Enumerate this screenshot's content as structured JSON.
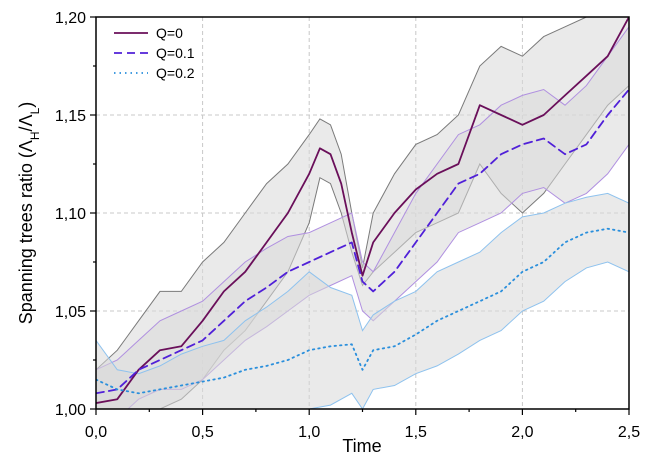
{
  "chart_data": {
    "type": "line",
    "xlabel": "Time",
    "ylabel_text": "Spanning trees ratio (",
    "ylabel_lambda": "Λ",
    "ylabel_sub_h": "H",
    "ylabel_slash": "/",
    "ylabel_sub_l": "L",
    "ylabel_close": ")",
    "xlim": [
      0,
      2.5
    ],
    "ylim": [
      1.0,
      1.2
    ],
    "xticks": [
      0,
      0.5,
      1.0,
      1.5,
      2.0,
      2.5
    ],
    "xtick_labels": [
      "0,0",
      "0,5",
      "1,0",
      "1,5",
      "2,0",
      "2,5"
    ],
    "yticks": [
      1.0,
      1.05,
      1.1,
      1.15,
      1.2
    ],
    "ytick_labels": [
      "1,00",
      "1,05",
      "1,10",
      "1,15",
      "1,20"
    ],
    "grid": true,
    "legend_position": "top-left",
    "band_fill_color": "#d9d9d9",
    "series": [
      {
        "name": "Q=0",
        "color": "#6a0f5a",
        "dash": "solid",
        "band_edge_color": "#7a7a7a",
        "x": [
          0.0,
          0.1,
          0.2,
          0.3,
          0.4,
          0.5,
          0.6,
          0.7,
          0.8,
          0.9,
          1.0,
          1.05,
          1.1,
          1.15,
          1.2,
          1.25,
          1.3,
          1.4,
          1.5,
          1.6,
          1.7,
          1.8,
          1.9,
          2.0,
          2.1,
          2.2,
          2.3,
          2.4,
          2.5
        ],
        "values": [
          1.003,
          1.005,
          1.02,
          1.03,
          1.032,
          1.045,
          1.06,
          1.07,
          1.085,
          1.1,
          1.12,
          1.133,
          1.13,
          1.115,
          1.09,
          1.068,
          1.085,
          1.1,
          1.112,
          1.12,
          1.125,
          1.155,
          1.15,
          1.145,
          1.15,
          1.16,
          1.17,
          1.18,
          1.2
        ],
        "upper": [
          1.02,
          1.03,
          1.045,
          1.06,
          1.06,
          1.075,
          1.085,
          1.1,
          1.115,
          1.125,
          1.14,
          1.148,
          1.145,
          1.13,
          1.1,
          1.072,
          1.1,
          1.12,
          1.135,
          1.14,
          1.15,
          1.175,
          1.185,
          1.18,
          1.19,
          1.195,
          1.2,
          1.2,
          1.2
        ],
        "lower": [
          0.99,
          0.99,
          0.995,
          1.0,
          1.005,
          1.015,
          1.03,
          1.04,
          1.055,
          1.07,
          1.095,
          1.118,
          1.115,
          1.1,
          1.08,
          1.063,
          1.07,
          1.08,
          1.09,
          1.095,
          1.1,
          1.125,
          1.11,
          1.1,
          1.11,
          1.125,
          1.14,
          1.155,
          1.165
        ]
      },
      {
        "name": "Q=0.1",
        "color": "#5020d8",
        "dash": "dashed",
        "band_edge_color": "#b090e0",
        "x": [
          0.0,
          0.1,
          0.2,
          0.3,
          0.4,
          0.5,
          0.6,
          0.7,
          0.8,
          0.9,
          1.0,
          1.1,
          1.2,
          1.25,
          1.3,
          1.4,
          1.5,
          1.6,
          1.7,
          1.8,
          1.9,
          2.0,
          2.1,
          2.2,
          2.3,
          2.4,
          2.5
        ],
        "values": [
          1.008,
          1.01,
          1.02,
          1.025,
          1.03,
          1.035,
          1.045,
          1.055,
          1.062,
          1.07,
          1.075,
          1.08,
          1.085,
          1.065,
          1.06,
          1.07,
          1.085,
          1.1,
          1.115,
          1.12,
          1.13,
          1.135,
          1.138,
          1.13,
          1.135,
          1.15,
          1.163
        ],
        "upper": [
          1.02,
          1.025,
          1.035,
          1.045,
          1.05,
          1.055,
          1.065,
          1.075,
          1.082,
          1.088,
          1.09,
          1.095,
          1.1,
          1.075,
          1.07,
          1.09,
          1.11,
          1.125,
          1.14,
          1.145,
          1.155,
          1.16,
          1.163,
          1.155,
          1.165,
          1.18,
          1.195
        ],
        "lower": [
          0.995,
          0.995,
          1.005,
          1.01,
          1.01,
          1.015,
          1.025,
          1.035,
          1.042,
          1.05,
          1.058,
          1.063,
          1.068,
          1.05,
          1.045,
          1.055,
          1.065,
          1.075,
          1.09,
          1.095,
          1.1,
          1.11,
          1.113,
          1.105,
          1.11,
          1.12,
          1.135
        ]
      },
      {
        "name": "Q=0.2",
        "color": "#2a8fdc",
        "dash": "dotted",
        "band_edge_color": "#8ec2ee",
        "x": [
          0.0,
          0.1,
          0.2,
          0.3,
          0.4,
          0.5,
          0.6,
          0.7,
          0.8,
          0.9,
          1.0,
          1.1,
          1.2,
          1.25,
          1.3,
          1.4,
          1.5,
          1.6,
          1.7,
          1.8,
          1.9,
          2.0,
          2.1,
          2.2,
          2.3,
          2.4,
          2.5
        ],
        "values": [
          1.015,
          1.01,
          1.008,
          1.01,
          1.012,
          1.014,
          1.016,
          1.02,
          1.022,
          1.025,
          1.03,
          1.032,
          1.033,
          1.02,
          1.03,
          1.032,
          1.038,
          1.045,
          1.05,
          1.055,
          1.06,
          1.07,
          1.075,
          1.085,
          1.09,
          1.092,
          1.09
        ],
        "upper": [
          1.035,
          1.02,
          1.018,
          1.022,
          1.028,
          1.032,
          1.035,
          1.045,
          1.052,
          1.06,
          1.07,
          1.062,
          1.058,
          1.04,
          1.048,
          1.055,
          1.06,
          1.07,
          1.075,
          1.08,
          1.09,
          1.098,
          1.1,
          1.105,
          1.108,
          1.11,
          1.105
        ],
        "lower": [
          1.0,
          0.998,
          0.996,
          0.998,
          0.998,
          0.999,
          1.0,
          1.0,
          1.0,
          1.0,
          1.0,
          1.002,
          1.008,
          1.0,
          1.01,
          1.012,
          1.018,
          1.022,
          1.028,
          1.035,
          1.04,
          1.05,
          1.055,
          1.065,
          1.072,
          1.075,
          1.07
        ]
      }
    ]
  }
}
